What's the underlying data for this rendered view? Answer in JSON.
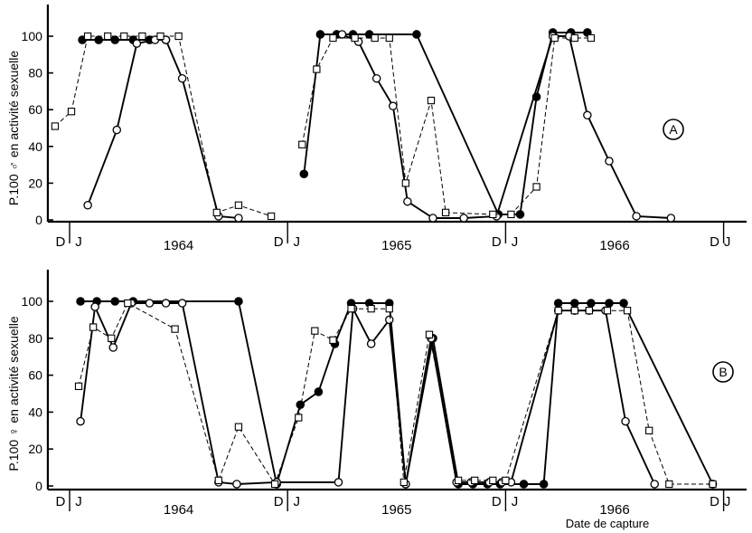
{
  "chart_data": [
    {
      "type": "line",
      "panel_label": "A",
      "ylabel": "P.100 ♂ en activité sexuelle",
      "ylim": [
        0,
        100
      ],
      "yticks": [
        0,
        20,
        40,
        60,
        80,
        100
      ],
      "x_unit": "months since Jan 1964",
      "xlim": [
        -0.8,
        36.3
      ],
      "month_markers": [
        {
          "label": "D",
          "x": -0.5
        },
        {
          "label": "J",
          "x": 0.5
        },
        {
          "label": "D",
          "x": 11.5
        },
        {
          "label": "J",
          "x": 12.5
        },
        {
          "label": "D",
          "x": 23.5
        },
        {
          "label": "J",
          "x": 24.5
        },
        {
          "label": "D",
          "x": 35.5
        },
        {
          "label": "J",
          "x": 36.2
        }
      ],
      "year_labels": [
        {
          "label": "1964",
          "x": 6.0
        },
        {
          "label": "1965",
          "x": 18.0
        },
        {
          "label": "1966",
          "x": 30.0
        }
      ],
      "series": [
        {
          "marker": "filled-circle",
          "line": "solid",
          "color": "#000000",
          "segments": [
            [
              [
                0.7,
                98
              ],
              [
                1.6,
                98
              ],
              [
                2.5,
                98
              ],
              [
                3.5,
                98
              ],
              [
                4.4,
                98
              ],
              [
                5.3,
                98
              ]
            ],
            [
              [
                12.9,
                25
              ],
              [
                13.8,
                101
              ],
              [
                14.7,
                101
              ],
              [
                15.6,
                101
              ],
              [
                16.5,
                101
              ],
              [
                19.1,
                101
              ],
              [
                23.6,
                3
              ],
              [
                24.8,
                3
              ],
              [
                25.7,
                67
              ],
              [
                26.6,
                102
              ],
              [
                27.6,
                102
              ],
              [
                28.5,
                102
              ]
            ]
          ]
        },
        {
          "marker": "open-circle",
          "line": "solid",
          "color": "#000000",
          "segments": [
            [
              [
                1.0,
                8
              ],
              [
                2.6,
                49
              ],
              [
                3.7,
                96
              ],
              [
                4.7,
                98
              ],
              [
                5.3,
                98
              ],
              [
                6.2,
                77
              ],
              [
                8.2,
                2
              ],
              [
                9.3,
                1
              ]
            ],
            [
              [
                15.0,
                101
              ],
              [
                15.9,
                97
              ],
              [
                16.9,
                77
              ],
              [
                17.8,
                62
              ],
              [
                18.6,
                10
              ],
              [
                20.0,
                1
              ],
              [
                21.7,
                1
              ],
              [
                23.5,
                2
              ],
              [
                26.6,
                100
              ],
              [
                27.5,
                100
              ],
              [
                28.5,
                57
              ],
              [
                29.7,
                32
              ],
              [
                31.2,
                2
              ],
              [
                33.1,
                1
              ]
            ]
          ]
        },
        {
          "marker": "open-square",
          "line": "dashed",
          "color": "#000000",
          "segments": [
            [
              [
                -0.8,
                51
              ],
              [
                0.1,
                59
              ],
              [
                1.0,
                100
              ],
              [
                2.1,
                100
              ],
              [
                3.0,
                100
              ],
              [
                4.0,
                100
              ],
              [
                5.0,
                100
              ],
              [
                6.0,
                100
              ],
              [
                8.1,
                4
              ],
              [
                9.3,
                8
              ],
              [
                11.1,
                2
              ]
            ],
            [
              [
                12.8,
                41
              ],
              [
                13.6,
                82
              ],
              [
                14.5,
                99
              ],
              [
                15.7,
                99
              ],
              [
                16.8,
                99
              ],
              [
                17.6,
                99
              ],
              [
                18.5,
                20
              ],
              [
                19.9,
                65
              ],
              [
                20.7,
                4
              ],
              [
                23.3,
                3
              ],
              [
                24.3,
                3
              ],
              [
                25.7,
                18
              ],
              [
                26.7,
                99
              ],
              [
                27.8,
                99
              ],
              [
                28.7,
                99
              ]
            ]
          ]
        }
      ]
    },
    {
      "type": "line",
      "panel_label": "B",
      "ylabel": "P.100 ♀ en activité sexuelle",
      "xlabel": "Date de capture",
      "ylim": [
        0,
        100
      ],
      "yticks": [
        0,
        20,
        40,
        60,
        80,
        100
      ],
      "x_unit": "months since Jan 1964",
      "xlim": [
        -0.8,
        36.3
      ],
      "month_markers": [
        {
          "label": "D",
          "x": -0.5
        },
        {
          "label": "J",
          "x": 0.5
        },
        {
          "label": "D",
          "x": 11.5
        },
        {
          "label": "J",
          "x": 12.5
        },
        {
          "label": "D",
          "x": 23.5
        },
        {
          "label": "J",
          "x": 24.5
        },
        {
          "label": "D",
          "x": 35.5
        },
        {
          "label": "J",
          "x": 36.2
        }
      ],
      "year_labels": [
        {
          "label": "1964",
          "x": 6.0
        },
        {
          "label": "1965",
          "x": 18.0
        },
        {
          "label": "1966",
          "x": 30.0
        }
      ],
      "series": [
        {
          "marker": "filled-circle",
          "line": "solid",
          "color": "#000000",
          "segments": [
            [
              [
                0.6,
                100
              ],
              [
                1.5,
                100
              ],
              [
                2.5,
                100
              ],
              [
                3.5,
                100
              ],
              [
                9.3,
                100
              ],
              [
                11.4,
                1
              ],
              [
                12.7,
                44
              ],
              [
                13.7,
                51
              ],
              [
                14.6,
                77
              ],
              [
                15.5,
                99
              ],
              [
                16.5,
                99
              ],
              [
                17.6,
                99
              ],
              [
                18.5,
                1
              ],
              [
                20.0,
                80
              ],
              [
                21.4,
                1
              ],
              [
                22.2,
                1
              ],
              [
                23.0,
                1
              ],
              [
                23.7,
                1
              ],
              [
                25.0,
                1
              ],
              [
                26.1,
                1
              ],
              [
                26.9,
                99
              ],
              [
                27.8,
                99
              ],
              [
                28.7,
                99
              ],
              [
                29.7,
                99
              ],
              [
                30.5,
                99
              ],
              [
                35.4,
                1
              ]
            ]
          ]
        },
        {
          "marker": "open-circle",
          "line": "solid",
          "color": "#000000",
          "segments": [
            [
              [
                0.6,
                35
              ],
              [
                1.4,
                97
              ],
              [
                2.4,
                75
              ],
              [
                3.4,
                99
              ],
              [
                4.4,
                99
              ],
              [
                5.3,
                99
              ],
              [
                6.2,
                99
              ],
              [
                8.2,
                2
              ],
              [
                9.2,
                1
              ],
              [
                11.4,
                2
              ],
              [
                14.8,
                2
              ],
              [
                15.6,
                96
              ],
              [
                16.6,
                77
              ],
              [
                17.6,
                90
              ],
              [
                18.5,
                1
              ],
              [
                19.9,
                80
              ],
              [
                21.3,
                2
              ],
              [
                22.1,
                2
              ],
              [
                23.1,
                2
              ],
              [
                23.8,
                2
              ],
              [
                24.3,
                2
              ],
              [
                26.9,
                95
              ],
              [
                27.8,
                95
              ],
              [
                28.6,
                95
              ],
              [
                29.5,
                95
              ],
              [
                30.6,
                35
              ],
              [
                32.2,
                1
              ]
            ]
          ]
        },
        {
          "marker": "open-square",
          "line": "dashed",
          "color": "#000000",
          "segments": [
            [
              [
                0.5,
                54
              ],
              [
                1.3,
                86
              ],
              [
                2.3,
                80
              ],
              [
                3.2,
                99
              ],
              [
                5.8,
                85
              ],
              [
                8.2,
                3
              ],
              [
                9.3,
                32
              ],
              [
                11.3,
                1
              ],
              [
                12.6,
                37
              ],
              [
                13.5,
                84
              ],
              [
                14.5,
                79
              ],
              [
                15.5,
                96
              ],
              [
                16.6,
                96
              ],
              [
                17.6,
                96
              ],
              [
                18.4,
                2
              ],
              [
                19.8,
                82
              ],
              [
                21.4,
                3
              ],
              [
                22.3,
                3
              ],
              [
                23.3,
                3
              ],
              [
                24.0,
                3
              ],
              [
                26.9,
                95
              ],
              [
                27.8,
                95
              ],
              [
                28.6,
                95
              ],
              [
                29.6,
                95
              ],
              [
                30.7,
                95
              ],
              [
                31.9,
                30
              ],
              [
                33.0,
                1
              ],
              [
                35.4,
                1
              ]
            ]
          ]
        }
      ]
    }
  ]
}
